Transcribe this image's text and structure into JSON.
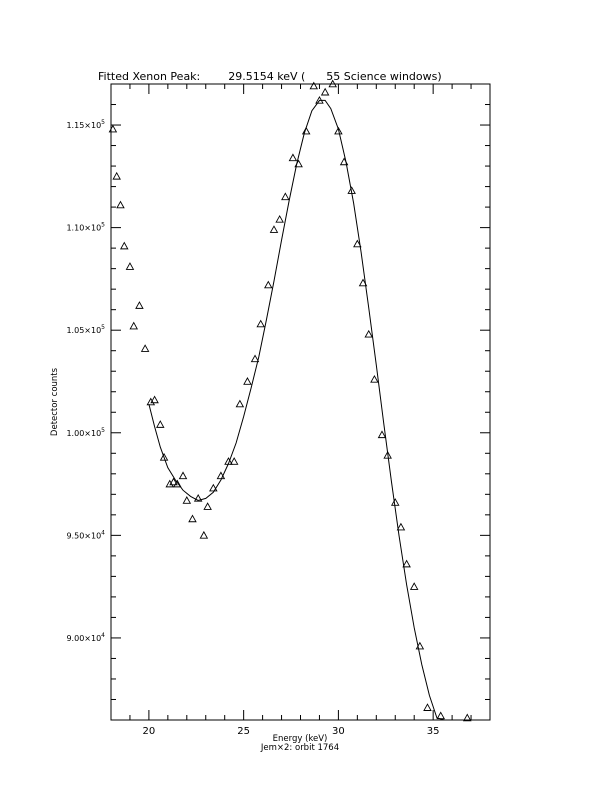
{
  "chart_data": {
    "type": "scatter",
    "title": "Fitted Xenon Peak:        29.5154 keV (      55 Science windows)",
    "xlabel": "Energy (keV)",
    "ylabel": "Detector counts",
    "subcaption": "Jem×2: orbit 1764",
    "xlim": [
      18.0,
      38.0
    ],
    "ylim": [
      86000,
      117000
    ],
    "x_ticks": [
      20,
      25,
      30,
      35
    ],
    "x_tick_labels": [
      "20",
      "25",
      "30",
      "35"
    ],
    "y_ticks": [
      90000,
      95000,
      100000,
      105000,
      110000,
      115000
    ],
    "y_tick_labels": [
      {
        "mantissa": "9.00×10",
        "exp": "4"
      },
      {
        "mantissa": "9.50×10",
        "exp": "4"
      },
      {
        "mantissa": "1.00×10",
        "exp": "5"
      },
      {
        "mantissa": "1.05×10",
        "exp": "5"
      },
      {
        "mantissa": "1.10×10",
        "exp": "5"
      },
      {
        "mantissa": "1.15×10",
        "exp": "5"
      }
    ],
    "series": [
      {
        "kind": "points",
        "marker": "triangle-open",
        "x": [
          18.1,
          18.3,
          18.5,
          18.7,
          19.0,
          19.2,
          19.5,
          19.8,
          20.1,
          20.3,
          20.6,
          20.8,
          21.1,
          21.3,
          21.5,
          21.8,
          22.0,
          22.3,
          22.6,
          22.9,
          23.1,
          23.4,
          23.8,
          24.2,
          24.5,
          24.8,
          25.2,
          25.6,
          25.9,
          26.3,
          26.6,
          26.9,
          27.2,
          27.6,
          27.9,
          28.3,
          28.7,
          29.0,
          29.3,
          29.7,
          30.0,
          30.3,
          30.7,
          31.0,
          31.3,
          31.6,
          31.9,
          32.3,
          32.6,
          33.0,
          33.3,
          33.6,
          34.0,
          34.3,
          34.7,
          35.4,
          36.8
        ],
        "y": [
          114800,
          112500,
          111100,
          109100,
          108100,
          105200,
          106200,
          104100,
          101500,
          101600,
          100400,
          98800,
          97500,
          97600,
          97500,
          97900,
          96700,
          95800,
          96800,
          95000,
          96400,
          97300,
          97900,
          98600,
          98600,
          101400,
          102500,
          103600,
          105300,
          107200,
          109900,
          110400,
          111500,
          113400,
          113100,
          114700,
          116900,
          116200,
          116600,
          117000,
          114700,
          113200,
          111800,
          109200,
          107300,
          104800,
          102600,
          99900,
          98900,
          96600,
          95400,
          93600,
          92500,
          89600,
          86600,
          86200,
          86100
        ]
      },
      {
        "kind": "fit-line",
        "x": [
          20.0,
          20.3,
          20.6,
          21.0,
          21.4,
          21.8,
          22.2,
          22.6,
          23.0,
          23.4,
          23.8,
          24.2,
          24.6,
          25.0,
          25.4,
          25.8,
          26.2,
          26.6,
          27.0,
          27.4,
          27.8,
          28.2,
          28.6,
          29.0,
          29.3,
          29.6,
          30.0,
          30.4,
          30.8,
          31.2,
          31.6,
          32.0,
          32.4,
          32.8,
          33.2,
          33.6,
          34.0,
          34.4,
          34.8,
          35.2,
          35.6,
          36.2,
          36.8
        ],
        "y": [
          101400,
          100300,
          99300,
          98300,
          97700,
          97200,
          96900,
          96700,
          96800,
          97100,
          97700,
          98500,
          99500,
          100800,
          102200,
          103700,
          105500,
          107400,
          109400,
          111300,
          113100,
          114600,
          115700,
          116200,
          116200,
          115800,
          114800,
          113200,
          111200,
          108800,
          106100,
          103300,
          100400,
          97600,
          95000,
          92600,
          90500,
          88700,
          87200,
          86100,
          85700,
          85300,
          84600
        ]
      }
    ]
  }
}
